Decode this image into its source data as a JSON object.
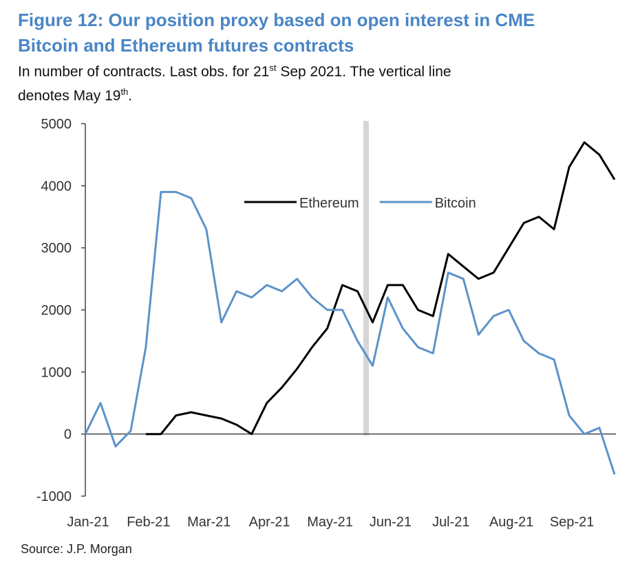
{
  "chart_data": {
    "type": "line",
    "title": [
      "Figure 12: Our position proxy based on open interest in CME",
      "Bitcoin and Ethereum futures contracts"
    ],
    "subtitle": [
      "In number of contracts. Last obs. for 21",
      "st",
      " Sep 2021. The vertical line",
      "denotes May 19",
      "th",
      "."
    ],
    "source": "Source: J.P. Morgan",
    "categories": [
      "Jan-21",
      null,
      null,
      null,
      "Feb-21",
      null,
      null,
      null,
      "Mar-21",
      null,
      null,
      null,
      "Apr-21",
      null,
      null,
      null,
      "May-21",
      null,
      null,
      null,
      "Jun-21",
      null,
      null,
      null,
      "Jul-21",
      null,
      null,
      null,
      "Aug-21",
      null,
      null,
      null,
      "Sep-21",
      null,
      null,
      null
    ],
    "series": [
      {
        "name": "Ethereum",
        "color": "#000000",
        "values": [
          null,
          null,
          null,
          null,
          0,
          0,
          300,
          350,
          300,
          250,
          150,
          0,
          500,
          750,
          1050,
          1400,
          1700,
          2400,
          2300,
          1800,
          2400,
          2400,
          2000,
          1900,
          2900,
          2700,
          2500,
          2600,
          3000,
          3400,
          3500,
          3300,
          4300,
          4700,
          4500,
          4100
        ]
      },
      {
        "name": "Bitcoin",
        "color": "#5b93c9",
        "values": [
          0,
          500,
          -200,
          50,
          1400,
          3900,
          3900,
          3800,
          3300,
          1800,
          2300,
          2200,
          2400,
          2300,
          2500,
          2200,
          2000,
          2000,
          1500,
          1100,
          2200,
          1700,
          1400,
          1300,
          2600,
          2500,
          1600,
          1900,
          2000,
          1500,
          1300,
          1200,
          300,
          0,
          100,
          -650
        ]
      }
    ],
    "ylim": [
      -1000,
      5000
    ],
    "yticks": [
      -1000,
      0,
      1000,
      2000,
      3000,
      4000,
      5000
    ],
    "legend": "center"
  }
}
